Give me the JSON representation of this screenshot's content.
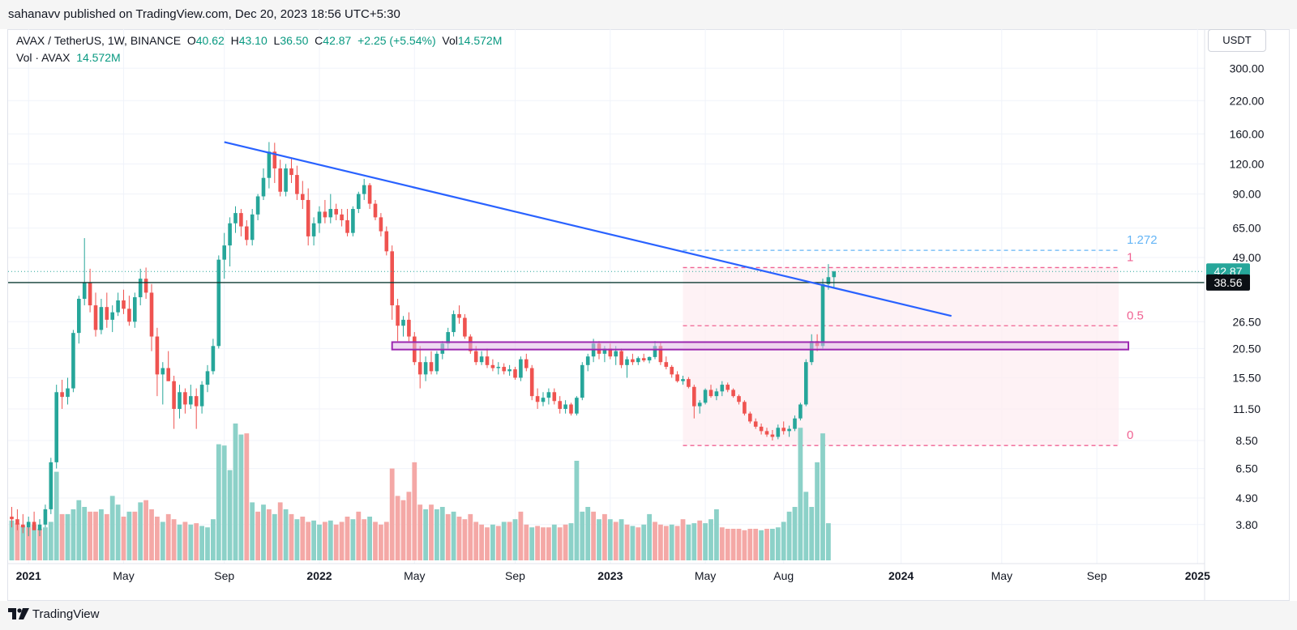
{
  "header": {
    "text": "sahanavv published on TradingView.com, Dec 20, 2023 18:56 UTC+5:30"
  },
  "legend": {
    "symbol": "AVAX / TetherUS, 1W, BINANCE",
    "open_label": "O",
    "open": "40.62",
    "high_label": "H",
    "high": "43.10",
    "low_label": "L",
    "low": "36.50",
    "close_label": "C",
    "close": "42.87",
    "change": "+2.25 (+5.54%)",
    "vol_label": "Vol",
    "vol": "14.572M",
    "vol_series": "Vol · AVAX",
    "vol_series_value": "14.572M"
  },
  "currency_button": "USDT",
  "footer": {
    "brand": "TradingView"
  },
  "colors": {
    "up": "#26a69a",
    "down": "#ef5350",
    "trendline": "#2962ff",
    "zone": "#9c27b0",
    "fib_dash": "#f06292",
    "fib_top": "#64b5f6",
    "current_price_bg": "#26a69a",
    "level_line": "#0c3b33"
  },
  "chart_data": {
    "type": "candlestick",
    "scale": "log",
    "interval": "1W",
    "y_ticks": [
      "300.00",
      "220.00",
      "160.00",
      "120.00",
      "90.00",
      "65.00",
      "49.00",
      "38.56",
      "26.50",
      "20.50",
      "15.50",
      "11.50",
      "8.50",
      "6.50",
      "4.90",
      "3.80"
    ],
    "x_ticks": [
      "2021",
      "May",
      "Sep",
      "2022",
      "May",
      "Sep",
      "2023",
      "May",
      "Aug",
      "2024",
      "May",
      "Sep",
      "2025"
    ],
    "ylim": [
      3.3,
      330
    ],
    "last_price": "42.87",
    "horizontal_level": "38.56",
    "fib_levels": [
      {
        "label": "1.272",
        "price": 52.5
      },
      {
        "label": "1",
        "price": 44.5
      },
      {
        "label": "0.5",
        "price": 25.5
      },
      {
        "label": "0",
        "price": 8.1
      }
    ],
    "trendline": {
      "from": {
        "date": "2021-09-06",
        "price": 148
      },
      "to": {
        "date": "2024-03-04",
        "price": 28
      }
    },
    "support_zone": {
      "from_date": "2022-04-04",
      "to_date": "2024-10-14",
      "low": 20.3,
      "high": 21.8
    },
    "candles": [
      [
        4.1,
        4.5,
        3.7,
        4.0
      ],
      [
        4.0,
        4.4,
        3.6,
        3.8
      ],
      [
        3.8,
        4.2,
        3.5,
        3.7
      ],
      [
        3.7,
        4.1,
        3.4,
        3.9
      ],
      [
        3.9,
        4.3,
        3.6,
        3.6
      ],
      [
        3.6,
        4.0,
        3.4,
        3.8
      ],
      [
        3.8,
        4.6,
        3.7,
        4.4
      ],
      [
        4.4,
        7.2,
        4.2,
        6.9
      ],
      [
        6.9,
        14.5,
        6.5,
        13.5
      ],
      [
        13.5,
        15.2,
        11.5,
        12.9
      ],
      [
        12.9,
        15.5,
        12.0,
        14.0
      ],
      [
        14.0,
        24.5,
        13.5,
        23.8
      ],
      [
        23.8,
        34.0,
        21.5,
        33.0
      ],
      [
        33.0,
        59.0,
        31.0,
        38.5
      ],
      [
        38.5,
        44.0,
        29.0,
        31.0
      ],
      [
        31.0,
        35.0,
        23.0,
        24.5
      ],
      [
        24.5,
        33.0,
        23.5,
        30.5
      ],
      [
        30.5,
        35.0,
        25.0,
        27.0
      ],
      [
        27.0,
        31.0,
        24.0,
        29.0
      ],
      [
        29.0,
        35.0,
        28.0,
        32.5
      ],
      [
        32.5,
        36.0,
        28.5,
        30.0
      ],
      [
        30.0,
        34.0,
        25.5,
        26.5
      ],
      [
        26.5,
        35.0,
        25.0,
        33.5
      ],
      [
        33.5,
        44.0,
        31.0,
        40.0
      ],
      [
        40.0,
        44.5,
        33.0,
        35.0
      ],
      [
        35.0,
        38.0,
        20.0,
        23.0
      ],
      [
        23.0,
        25.0,
        13.0,
        16.0
      ],
      [
        16.0,
        18.0,
        12.0,
        17.0
      ],
      [
        17.0,
        20.0,
        15.0,
        15.0
      ],
      [
        15.0,
        15.8,
        9.5,
        11.5
      ],
      [
        11.5,
        14.5,
        10.5,
        13.5
      ],
      [
        13.5,
        14.0,
        11.0,
        12.0
      ],
      [
        12.0,
        14.5,
        11.5,
        13.0
      ],
      [
        13.0,
        14.0,
        9.5,
        11.8
      ],
      [
        11.8,
        15.0,
        11.0,
        14.5
      ],
      [
        14.5,
        17.5,
        13.5,
        16.5
      ],
      [
        16.5,
        22.5,
        16.0,
        21.0
      ],
      [
        21.0,
        50.0,
        20.5,
        48.0
      ],
      [
        48.0,
        62.0,
        40.0,
        55.0
      ],
      [
        55.0,
        72.0,
        45.0,
        68.0
      ],
      [
        68.0,
        80.0,
        62.0,
        75.0
      ],
      [
        75.0,
        78.0,
        60.0,
        66.0
      ],
      [
        66.0,
        70.0,
        55.0,
        58.0
      ],
      [
        58.0,
        78.0,
        55.0,
        74.0
      ],
      [
        74.0,
        90.0,
        70.0,
        88.0
      ],
      [
        88.0,
        115.0,
        85.0,
        105.0
      ],
      [
        105.0,
        148.0,
        95.0,
        135.0
      ],
      [
        135.0,
        147.0,
        100.0,
        115.0
      ],
      [
        115.0,
        125.0,
        88.0,
        92.0
      ],
      [
        92.0,
        120.0,
        88.0,
        115.0
      ],
      [
        115.0,
        127.0,
        100.0,
        108.0
      ],
      [
        108.0,
        118.0,
        85.0,
        90.0
      ],
      [
        90.0,
        102.0,
        78.0,
        85.0
      ],
      [
        85.0,
        95.0,
        55.0,
        60.0
      ],
      [
        60.0,
        72.0,
        55.0,
        68.0
      ],
      [
        68.0,
        80.0,
        62.0,
        76.0
      ],
      [
        76.0,
        85.0,
        68.0,
        72.0
      ],
      [
        72.0,
        90.0,
        68.0,
        78.0
      ],
      [
        78.0,
        82.0,
        70.0,
        74.0
      ],
      [
        74.0,
        78.0,
        66.0,
        70.0
      ],
      [
        70.0,
        78.0,
        60.0,
        62.0
      ],
      [
        62.0,
        80.0,
        60.0,
        78.0
      ],
      [
        78.0,
        92.0,
        75.0,
        90.0
      ],
      [
        90.0,
        104.0,
        85.0,
        98.0
      ],
      [
        98.0,
        100.0,
        78.0,
        82.0
      ],
      [
        82.0,
        85.0,
        70.0,
        72.0
      ],
      [
        72.0,
        75.0,
        60.0,
        63.0
      ],
      [
        63.0,
        66.0,
        50.0,
        52.0
      ],
      [
        52.0,
        55.0,
        27.0,
        31.0
      ],
      [
        31.0,
        33.0,
        22.0,
        25.5
      ],
      [
        25.5,
        28.0,
        23.0,
        27.0
      ],
      [
        27.0,
        29.0,
        22.0,
        23.0
      ],
      [
        23.0,
        24.0,
        17.5,
        18.0
      ],
      [
        18.0,
        21.0,
        14.0,
        16.0
      ],
      [
        16.0,
        19.0,
        15.0,
        18.0
      ],
      [
        18.0,
        20.0,
        16.0,
        16.5
      ],
      [
        16.5,
        20.0,
        16.0,
        19.5
      ],
      [
        19.5,
        22.0,
        18.5,
        21.5
      ],
      [
        21.5,
        25.0,
        20.5,
        24.0
      ],
      [
        24.0,
        29.5,
        23.0,
        28.5
      ],
      [
        28.5,
        31.0,
        26.0,
        27.5
      ],
      [
        27.5,
        28.5,
        22.5,
        23.0
      ],
      [
        23.0,
        23.5,
        19.5,
        20.0
      ],
      [
        20.0,
        21.0,
        17.5,
        18.0
      ],
      [
        18.0,
        20.0,
        17.5,
        19.0
      ],
      [
        19.0,
        20.5,
        17.0,
        17.5
      ],
      [
        17.5,
        18.5,
        16.5,
        17.0
      ],
      [
        17.0,
        18.0,
        16.0,
        17.2
      ],
      [
        17.2,
        17.8,
        16.0,
        16.5
      ],
      [
        16.5,
        17.5,
        15.8,
        16.8
      ],
      [
        16.8,
        17.2,
        15.2,
        15.5
      ],
      [
        15.5,
        19.0,
        15.0,
        18.5
      ],
      [
        18.5,
        19.5,
        16.5,
        17.0
      ],
      [
        17.0,
        17.5,
        12.5,
        13.0
      ],
      [
        13.0,
        14.0,
        11.5,
        12.3
      ],
      [
        12.3,
        13.5,
        11.8,
        12.8
      ],
      [
        12.8,
        14.0,
        12.0,
        13.5
      ],
      [
        13.5,
        14.0,
        12.0,
        12.4
      ],
      [
        12.4,
        13.0,
        11.0,
        11.5
      ],
      [
        11.5,
        12.5,
        11.0,
        12.0
      ],
      [
        12.0,
        12.2,
        10.8,
        11.0
      ],
      [
        11.0,
        13.0,
        10.8,
        12.8
      ],
      [
        12.8,
        18.0,
        12.5,
        17.5
      ],
      [
        17.5,
        19.5,
        16.5,
        19.0
      ],
      [
        19.0,
        22.5,
        18.0,
        21.5
      ],
      [
        21.5,
        22.0,
        18.5,
        19.5
      ],
      [
        19.5,
        21.0,
        18.0,
        20.5
      ],
      [
        20.5,
        21.5,
        18.5,
        19.0
      ],
      [
        19.0,
        21.0,
        17.5,
        20.0
      ],
      [
        20.0,
        20.5,
        17.0,
        17.5
      ],
      [
        17.5,
        19.0,
        15.5,
        18.5
      ],
      [
        18.5,
        19.5,
        17.5,
        18.0
      ],
      [
        18.0,
        19.0,
        17.5,
        18.7
      ],
      [
        18.7,
        19.5,
        18.0,
        18.3
      ],
      [
        18.3,
        19.0,
        17.8,
        18.9
      ],
      [
        18.9,
        22.0,
        18.5,
        21.0
      ],
      [
        21.0,
        21.8,
        17.5,
        18.0
      ],
      [
        18.0,
        19.0,
        16.8,
        17.2
      ],
      [
        17.2,
        17.5,
        15.5,
        16.0
      ],
      [
        16.0,
        16.5,
        14.8,
        15.0
      ],
      [
        15.0,
        15.8,
        14.5,
        15.3
      ],
      [
        15.3,
        15.6,
        14.0,
        14.2
      ],
      [
        14.2,
        14.5,
        10.5,
        11.8
      ],
      [
        11.8,
        12.5,
        11.0,
        12.2
      ],
      [
        12.2,
        14.0,
        12.0,
        13.8
      ],
      [
        13.8,
        14.5,
        12.8,
        13.0
      ],
      [
        13.0,
        14.0,
        12.5,
        13.6
      ],
      [
        13.6,
        15.0,
        13.0,
        14.5
      ],
      [
        14.5,
        14.8,
        13.5,
        13.8
      ],
      [
        13.8,
        14.0,
        12.8,
        13.0
      ],
      [
        13.0,
        13.2,
        12.0,
        12.3
      ],
      [
        12.3,
        12.5,
        10.8,
        11.0
      ],
      [
        11.0,
        11.2,
        10.0,
        10.2
      ],
      [
        10.2,
        10.5,
        9.5,
        9.7
      ],
      [
        9.7,
        10.0,
        9.0,
        9.3
      ],
      [
        9.3,
        9.6,
        8.8,
        9.0
      ],
      [
        9.0,
        9.4,
        8.5,
        8.8
      ],
      [
        8.8,
        9.9,
        8.6,
        9.6
      ],
      [
        9.6,
        10.2,
        9.0,
        9.3
      ],
      [
        9.3,
        9.8,
        8.8,
        9.5
      ],
      [
        9.5,
        10.8,
        9.3,
        10.5
      ],
      [
        10.5,
        12.2,
        10.3,
        12.0
      ],
      [
        12.0,
        18.5,
        11.8,
        18.0
      ],
      [
        18.0,
        23.5,
        17.5,
        22.0
      ],
      [
        22.0,
        23.5,
        20.0,
        21.0
      ],
      [
        21.0,
        40.0,
        20.5,
        38.0
      ],
      [
        38.0,
        46.0,
        36.0,
        40.6
      ],
      [
        40.6,
        43.1,
        36.5,
        42.87
      ]
    ],
    "volumes": [
      [
        "up",
        3.95
      ],
      [
        "down",
        3.85
      ],
      [
        "up",
        3.75
      ],
      [
        "down",
        3.7
      ],
      [
        "up",
        3.8
      ],
      [
        "down",
        3.65
      ],
      [
        "up",
        3.7
      ],
      [
        "up",
        3.9
      ],
      [
        "up",
        6.3
      ],
      [
        "down",
        4.2
      ],
      [
        "up",
        4.2
      ],
      [
        "up",
        4.4
      ],
      [
        "up",
        4.8
      ],
      [
        "up",
        4.5
      ],
      [
        "down",
        4.3
      ],
      [
        "down",
        4.3
      ],
      [
        "up",
        4.4
      ],
      [
        "down",
        4.2
      ],
      [
        "up",
        5.0
      ],
      [
        "up",
        4.6
      ],
      [
        "down",
        4.1
      ],
      [
        "up",
        4.3
      ],
      [
        "down",
        4.3
      ],
      [
        "up",
        4.7
      ],
      [
        "down",
        4.8
      ],
      [
        "down",
        4.4
      ],
      [
        "down",
        4.1
      ],
      [
        "up",
        3.9
      ],
      [
        "down",
        4.2
      ],
      [
        "down",
        4.0
      ],
      [
        "up",
        3.8
      ],
      [
        "down",
        3.9
      ],
      [
        "up",
        3.8
      ],
      [
        "down",
        3.85
      ],
      [
        "up",
        3.75
      ],
      [
        "up",
        3.7
      ],
      [
        "up",
        4.0
      ],
      [
        "up",
        8.2
      ],
      [
        "up",
        8.1
      ],
      [
        "up",
        6.4
      ],
      [
        "up",
        10.0
      ],
      [
        "up",
        9.0
      ],
      [
        "down",
        9.1
      ],
      [
        "up",
        4.7
      ],
      [
        "down",
        4.3
      ],
      [
        "up",
        4.6
      ],
      [
        "down",
        4.4
      ],
      [
        "up",
        4.2
      ],
      [
        "down",
        4.7
      ],
      [
        "up",
        4.4
      ],
      [
        "down",
        4.2
      ],
      [
        "up",
        4.0
      ],
      [
        "down",
        4.1
      ],
      [
        "down",
        3.9
      ],
      [
        "up",
        3.95
      ],
      [
        "up",
        3.8
      ],
      [
        "down",
        3.9
      ],
      [
        "up",
        3.95
      ],
      [
        "down",
        3.8
      ],
      [
        "down",
        3.9
      ],
      [
        "down",
        4.1
      ],
      [
        "up",
        4.0
      ],
      [
        "down",
        4.3
      ],
      [
        "down",
        4.0
      ],
      [
        "up",
        4.1
      ],
      [
        "down",
        3.9
      ],
      [
        "down",
        3.8
      ],
      [
        "down",
        3.9
      ],
      [
        "down",
        6.5
      ],
      [
        "down",
        5.0
      ],
      [
        "down",
        4.8
      ],
      [
        "down",
        5.2
      ],
      [
        "down",
        6.9
      ],
      [
        "down",
        4.6
      ],
      [
        "up",
        4.4
      ],
      [
        "down",
        4.6
      ],
      [
        "up",
        4.4
      ],
      [
        "up",
        4.5
      ],
      [
        "down",
        4.2
      ],
      [
        "up",
        4.3
      ],
      [
        "down",
        4.1
      ],
      [
        "down",
        4.0
      ],
      [
        "down",
        4.2
      ],
      [
        "down",
        3.9
      ],
      [
        "down",
        3.8
      ],
      [
        "down",
        3.7
      ],
      [
        "up",
        3.8
      ],
      [
        "down",
        3.75
      ],
      [
        "up",
        3.9
      ],
      [
        "down",
        3.9
      ],
      [
        "up",
        4.0
      ],
      [
        "down",
        4.3
      ],
      [
        "down",
        3.8
      ],
      [
        "up",
        3.7
      ],
      [
        "down",
        3.75
      ],
      [
        "down",
        3.7
      ],
      [
        "down",
        3.7
      ],
      [
        "up",
        3.8
      ],
      [
        "down",
        3.7
      ],
      [
        "down",
        3.8
      ],
      [
        "up",
        3.85
      ],
      [
        "up",
        7.0
      ],
      [
        "up",
        4.3
      ],
      [
        "up",
        4.5
      ],
      [
        "down",
        4.3
      ],
      [
        "up",
        4.0
      ],
      [
        "down",
        4.2
      ],
      [
        "up",
        4.0
      ],
      [
        "down",
        3.9
      ],
      [
        "up",
        4.0
      ],
      [
        "down",
        3.8
      ],
      [
        "up",
        3.75
      ],
      [
        "down",
        3.7
      ],
      [
        "up",
        3.8
      ],
      [
        "up",
        4.2
      ],
      [
        "down",
        3.9
      ],
      [
        "down",
        3.8
      ],
      [
        "down",
        3.75
      ],
      [
        "up",
        3.8
      ],
      [
        "down",
        3.75
      ],
      [
        "down",
        4.0
      ],
      [
        "up",
        3.8
      ],
      [
        "up",
        3.85
      ],
      [
        "down",
        3.95
      ],
      [
        "up",
        3.85
      ],
      [
        "up",
        4.0
      ],
      [
        "up",
        4.4
      ],
      [
        "down",
        3.7
      ],
      [
        "down",
        3.65
      ],
      [
        "down",
        3.65
      ],
      [
        "down",
        3.65
      ],
      [
        "down",
        3.6
      ],
      [
        "down",
        3.65
      ],
      [
        "down",
        3.65
      ],
      [
        "up",
        3.6
      ],
      [
        "down",
        3.65
      ],
      [
        "up",
        3.65
      ],
      [
        "up",
        3.7
      ],
      [
        "up",
        3.9
      ],
      [
        "up",
        4.3
      ],
      [
        "up",
        4.5
      ],
      [
        "up",
        9.6
      ],
      [
        "up",
        5.2
      ],
      [
        "up",
        4.5
      ],
      [
        "up",
        6.9
      ],
      [
        "up",
        9.1
      ],
      [
        "up",
        3.85
      ]
    ]
  }
}
